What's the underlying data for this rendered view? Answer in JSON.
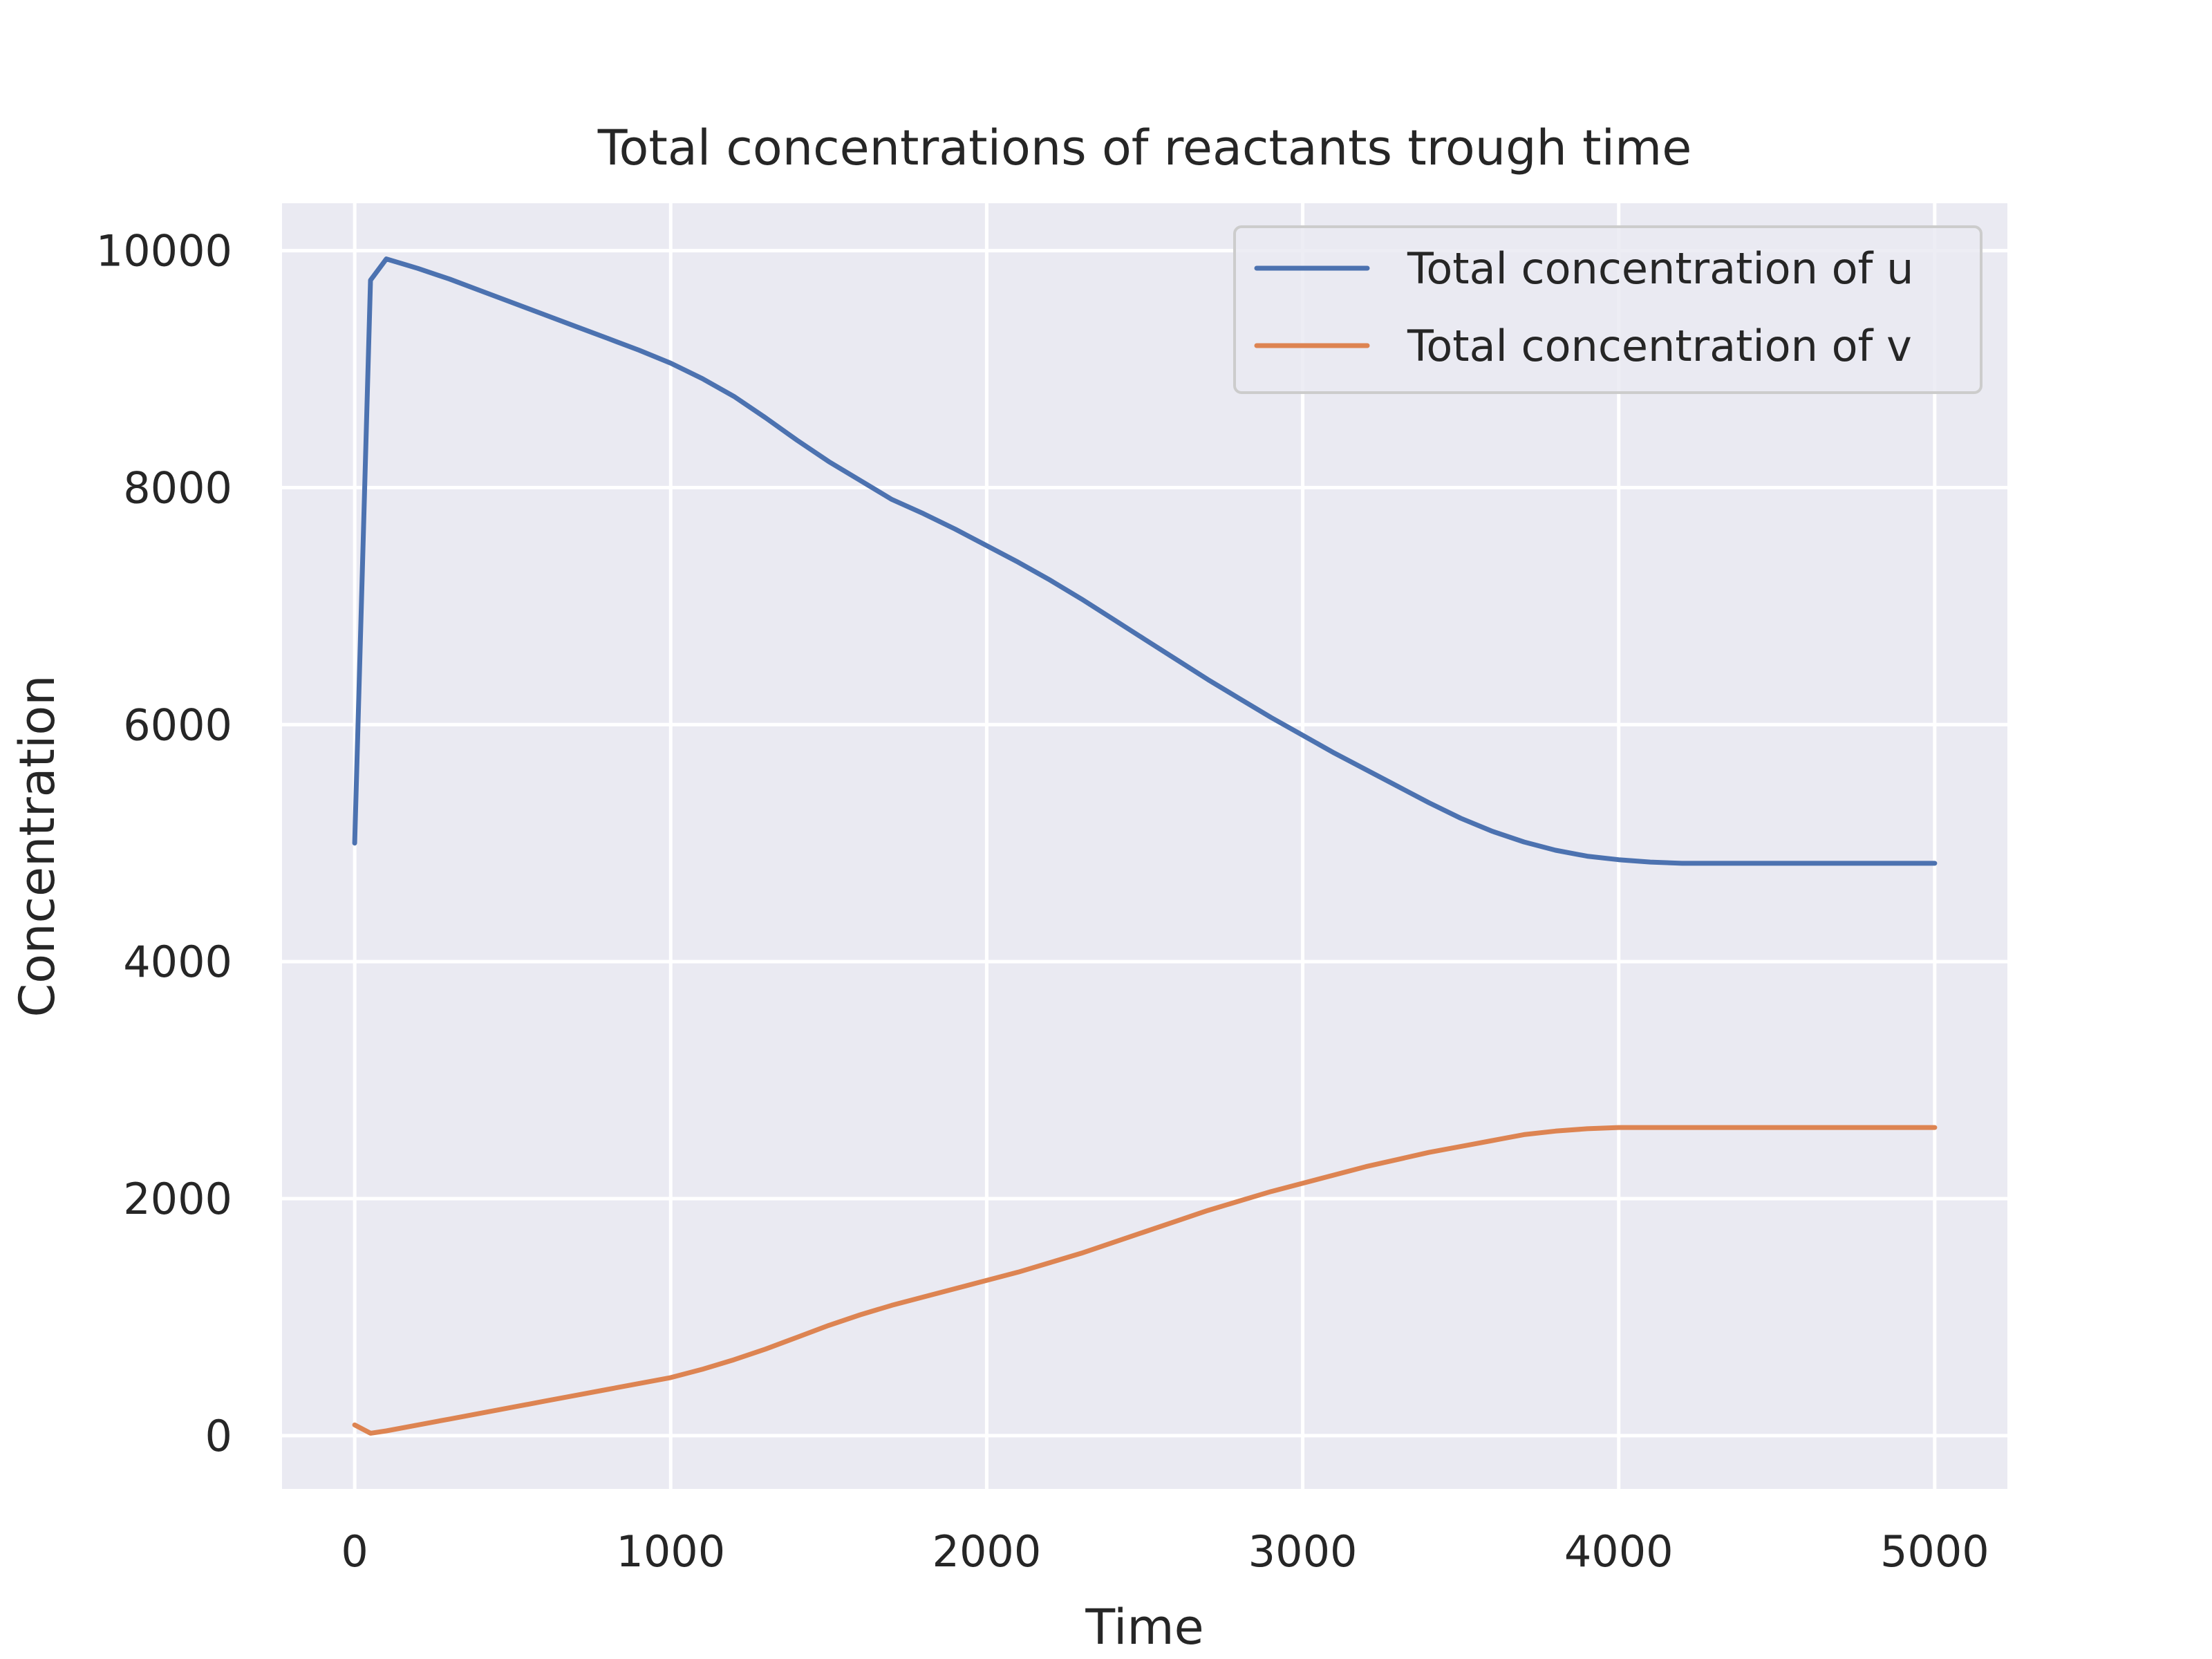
{
  "chart_data": {
    "type": "line",
    "title": "Total concentrations of reactants trough time",
    "xlabel": "Time",
    "ylabel": "Concentration",
    "xlim": [
      -230,
      5230
    ],
    "ylim": [
      -450,
      10400
    ],
    "xticks": [
      0,
      1000,
      2000,
      3000,
      4000,
      5000
    ],
    "yticks": [
      0,
      2000,
      4000,
      6000,
      8000,
      10000
    ],
    "xtick_labels": [
      "0",
      "1000",
      "2000",
      "3000",
      "4000",
      "5000"
    ],
    "ytick_labels": [
      "0",
      "2000",
      "4000",
      "6000",
      "8000",
      "10000"
    ],
    "grid": true,
    "legend_position": "top-right",
    "background_color": "#eaeaf2",
    "series": [
      {
        "name": "Total concentration of u",
        "color": "#4c72b0",
        "x": [
          0,
          50,
          100,
          200,
          300,
          400,
          500,
          600,
          700,
          800,
          900,
          1000,
          1100,
          1200,
          1300,
          1400,
          1500,
          1600,
          1700,
          1800,
          1900,
          2000,
          2100,
          2200,
          2300,
          2400,
          2500,
          2600,
          2700,
          2800,
          2900,
          3000,
          3100,
          3200,
          3300,
          3400,
          3500,
          3600,
          3700,
          3800,
          3900,
          4000,
          4100,
          4200,
          4300,
          4400,
          4500,
          4550,
          4600,
          4700,
          4800,
          4900,
          5000
        ],
        "y": [
          5000,
          9750,
          9930,
          9850,
          9760,
          9660,
          9560,
          9460,
          9360,
          9260,
          9160,
          9050,
          8920,
          8770,
          8590,
          8400,
          8220,
          8060,
          7900,
          7780,
          7650,
          7510,
          7370,
          7220,
          7060,
          6890,
          6720,
          6550,
          6380,
          6220,
          6060,
          5910,
          5760,
          5620,
          5480,
          5340,
          5210,
          5100,
          5010,
          4940,
          4890,
          4860,
          4840,
          4830,
          4830,
          4830,
          4830,
          4830,
          4830,
          4830,
          4830,
          4830,
          4830
        ]
      },
      {
        "name": "Total concentration of v",
        "color": "#dd8452",
        "x": [
          0,
          50,
          100,
          200,
          300,
          400,
          500,
          600,
          700,
          800,
          900,
          1000,
          1100,
          1200,
          1300,
          1400,
          1500,
          1600,
          1700,
          1800,
          1900,
          2000,
          2100,
          2200,
          2300,
          2400,
          2500,
          2600,
          2700,
          2800,
          2900,
          3000,
          3100,
          3200,
          3300,
          3400,
          3500,
          3600,
          3700,
          3800,
          3900,
          4000,
          4100,
          4200,
          4300,
          4400,
          4500,
          4550,
          4600,
          4700,
          4800,
          4900,
          5000
        ],
        "y": [
          90,
          20,
          40,
          90,
          140,
          190,
          240,
          290,
          340,
          390,
          440,
          490,
          560,
          640,
          730,
          830,
          930,
          1020,
          1100,
          1170,
          1240,
          1310,
          1380,
          1460,
          1540,
          1630,
          1720,
          1810,
          1900,
          1980,
          2060,
          2130,
          2200,
          2270,
          2330,
          2390,
          2440,
          2490,
          2540,
          2570,
          2590,
          2600,
          2600,
          2600,
          2600,
          2600,
          2600,
          2600,
          2600,
          2600,
          2600,
          2600,
          2600
        ]
      }
    ]
  }
}
